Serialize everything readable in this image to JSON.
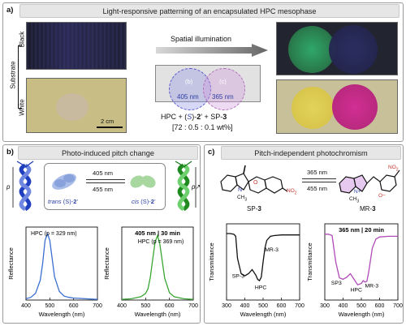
{
  "panel_a": {
    "label": "a)",
    "title": "Light-responsive patterning of an encapsulated HPC mesophase",
    "substrate_label": "Substrate",
    "black_label": "Black",
    "white_label": "White",
    "scale_bar": "2 cm",
    "arrow_label": "Spatial illumination",
    "circle_b": "(b)",
    "circle_c": "(c)",
    "nm_405": "405 nm",
    "nm_365": "365 nm",
    "formula_a": "HPC + (",
    "formula_s": "S",
    "formula_b": ")-",
    "formula_2": "2",
    "formula_c": "’ + SP-",
    "formula_3": "3",
    "ratio": "[72 : 0.5 : 0.1 wt%]"
  },
  "panel_b": {
    "label": "b)",
    "title": "Photo-induced pitch change",
    "pitch_symbol": "p",
    "nm_405": "405 nm",
    "nm_455": "455 nm",
    "trans_label_a": "trans",
    "trans_label_b": "(S)-",
    "trans_label_c": "2",
    "trans_label_d": "’",
    "cis_label_a": "cis",
    "cis_label_b": "(S)-",
    "cis_label_c": "2",
    "cis_label_d": "’",
    "pitch_arrow": "↗"
  },
  "panel_c": {
    "label": "c)",
    "title": "Pitch-independent photochromism",
    "sp_label_a": "SP-",
    "sp_label_b": "3",
    "mr_label_a": "MR-",
    "mr_label_b": "3",
    "nm_365": "365 nm",
    "nm_455": "455 nm",
    "no2": "NO",
    "no2_sub": "2",
    "ch3": "CH",
    "ch3_sub": "3",
    "n_atom": "N",
    "o_atom": "O",
    "nplus": "N+",
    "ominus": "O−"
  },
  "colors": {
    "blue_curve": "#3a6fd0",
    "green_curve": "#3aa533",
    "black_curve": "#111111",
    "magenta_curve": "#b04ab7",
    "header_bg": "#e6e6e6"
  },
  "chart_data": [
    {
      "type": "line",
      "xlabel": "Wavelength (nm)",
      "ylabel": "Reflectance",
      "xlim": [
        400,
        700
      ],
      "xticks": [
        "400",
        "500",
        "600",
        "700"
      ],
      "annotation": "HPC (p = 329 nm)",
      "series": [
        {
          "x": [
            400,
            420,
            440,
            460,
            470,
            480,
            490,
            500,
            510,
            520,
            540,
            560,
            580,
            600,
            650,
            700
          ],
          "y": [
            0.02,
            0.04,
            0.1,
            0.3,
            0.55,
            0.9,
            1.0,
            0.9,
            0.62,
            0.35,
            0.13,
            0.06,
            0.04,
            0.03,
            0.02,
            0.01
          ]
        }
      ]
    },
    {
      "type": "line",
      "xlabel": "Wavelength (nm)",
      "ylabel": "Reflectance",
      "xlim": [
        400,
        700
      ],
      "xticks": [
        "400",
        "500",
        "600",
        "700"
      ],
      "title": "405 nm | 30 min",
      "annotation": "HPC (p = 369 nm)",
      "series": [
        {
          "x": [
            400,
            440,
            480,
            500,
            510,
            520,
            530,
            540,
            550,
            560,
            570,
            580,
            600,
            620,
            660,
            700
          ],
          "y": [
            0.01,
            0.02,
            0.05,
            0.1,
            0.17,
            0.35,
            0.62,
            0.88,
            0.97,
            0.84,
            0.58,
            0.33,
            0.11,
            0.05,
            0.02,
            0.01
          ]
        }
      ]
    },
    {
      "type": "line",
      "xlabel": "Wavelength (nm)",
      "ylabel": "Transmittance",
      "xlim": [
        300,
        700
      ],
      "xticks": [
        "300",
        "400",
        "500",
        "600",
        "700"
      ],
      "labels": [
        "SP-3",
        "HPC",
        "MR-3"
      ],
      "series": [
        {
          "x": [
            300,
            320,
            340,
            350,
            360,
            380,
            400,
            420,
            440,
            460,
            470,
            480,
            490,
            500,
            510,
            520,
            540,
            560,
            600,
            650,
            700
          ],
          "y": [
            0.96,
            0.96,
            0.95,
            0.92,
            0.6,
            0.38,
            0.35,
            0.38,
            0.44,
            0.36,
            0.3,
            0.28,
            0.33,
            0.55,
            0.75,
            0.86,
            0.92,
            0.93,
            0.94,
            0.94,
            0.94
          ]
        }
      ]
    },
    {
      "type": "line",
      "xlabel": "Wavelength (nm)",
      "ylabel": "Transmittance",
      "xlim": [
        300,
        700
      ],
      "xticks": [
        "300",
        "400",
        "500",
        "600",
        "700"
      ],
      "title": "365 nm | 20 min",
      "labels": [
        "SP3",
        "HPC",
        "MR-3"
      ],
      "series": [
        {
          "x": [
            300,
            320,
            340,
            360,
            380,
            400,
            420,
            440,
            460,
            480,
            500,
            510,
            520,
            530,
            540,
            560,
            580,
            600,
            650,
            700
          ],
          "y": [
            0.95,
            0.95,
            0.93,
            0.55,
            0.32,
            0.3,
            0.33,
            0.38,
            0.3,
            0.22,
            0.24,
            0.28,
            0.26,
            0.27,
            0.4,
            0.75,
            0.88,
            0.91,
            0.92,
            0.92
          ]
        }
      ]
    }
  ]
}
